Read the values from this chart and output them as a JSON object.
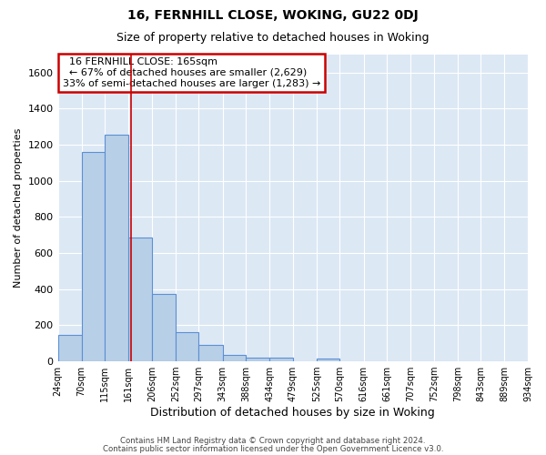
{
  "title": "16, FERNHILL CLOSE, WOKING, GU22 0DJ",
  "subtitle": "Size of property relative to detached houses in Woking",
  "xlabel": "Distribution of detached houses by size in Woking",
  "ylabel": "Number of detached properties",
  "footer_line1": "Contains HM Land Registry data © Crown copyright and database right 2024.",
  "footer_line2": "Contains public sector information licensed under the Open Government Licence v3.0.",
  "annotation_title": "16 FERNHILL CLOSE: 165sqm",
  "annotation_line1": "← 67% of detached houses are smaller (2,629)",
  "annotation_line2": "33% of semi-detached houses are larger (1,283) →",
  "bar_edges": [
    24,
    70,
    115,
    161,
    206,
    252,
    297,
    343,
    388,
    434,
    479,
    525,
    570,
    616,
    661,
    707,
    752,
    798,
    843,
    889,
    934
  ],
  "bar_heights": [
    148,
    1160,
    1255,
    685,
    375,
    160,
    93,
    38,
    22,
    22,
    0,
    18,
    0,
    0,
    0,
    0,
    0,
    0,
    0,
    0
  ],
  "bar_color": "#b8cfe8",
  "bar_edge_color": "#5b8fd4",
  "property_line_x": 165,
  "property_line_color": "#cc0000",
  "ylim": [
    0,
    1700
  ],
  "yticks": [
    0,
    200,
    400,
    600,
    800,
    1000,
    1200,
    1400,
    1600
  ],
  "bg_color": "#ffffff",
  "plot_bg_color": "#dde8f5",
  "grid_color": "#ffffff",
  "annotation_box_color": "#ffffff",
  "annotation_box_edge": "#cc0000"
}
